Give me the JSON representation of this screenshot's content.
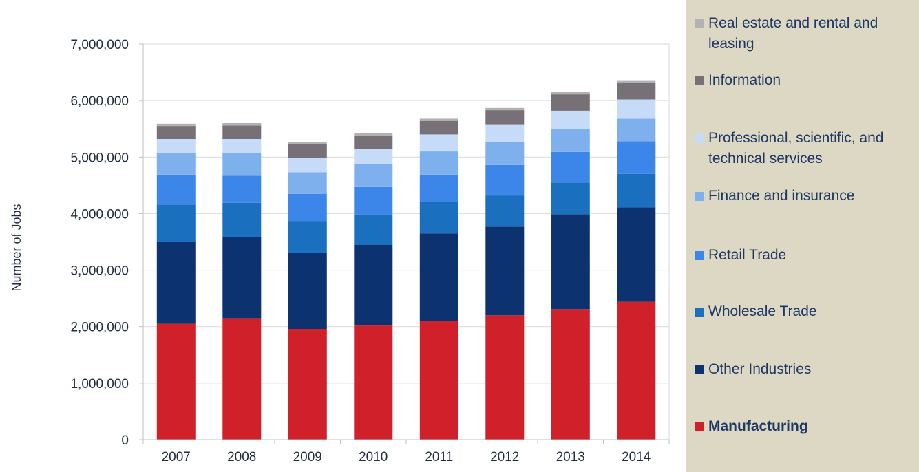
{
  "chart_data": {
    "type": "bar",
    "stacked": true,
    "title": "",
    "xlabel": "",
    "ylabel": "Number of Jobs",
    "ylim": [
      0,
      7000000
    ],
    "y_ticks": [
      0,
      1000000,
      2000000,
      3000000,
      4000000,
      5000000,
      6000000,
      7000000
    ],
    "y_tick_labels": [
      "0",
      "1,000,000",
      "2,000,000",
      "3,000,000",
      "4,000,000",
      "5,000,000",
      "6,000,000",
      "7,000,000"
    ],
    "grid": true,
    "legend_position": "right",
    "categories": [
      "2007",
      "2008",
      "2009",
      "2010",
      "2011",
      "2012",
      "2013",
      "2014"
    ],
    "series": [
      {
        "name": "Manufacturing",
        "color": "#d0202a",
        "bold": true,
        "values": [
          2050000,
          2150000,
          1960000,
          2020000,
          2100000,
          2200000,
          2310000,
          2440000
        ]
      },
      {
        "name": "Other Industries",
        "color": "#0d3270",
        "values": [
          1450000,
          1440000,
          1340000,
          1430000,
          1550000,
          1570000,
          1680000,
          1670000
        ]
      },
      {
        "name": "Wholesale Trade",
        "color": "#1a6fbf",
        "values": [
          660000,
          600000,
          570000,
          540000,
          560000,
          550000,
          560000,
          590000
        ]
      },
      {
        "name": "Retail Trade",
        "color": "#3b86e8",
        "values": [
          530000,
          480000,
          480000,
          480000,
          480000,
          540000,
          540000,
          580000
        ]
      },
      {
        "name": "Finance and insurance",
        "color": "#7fb0ee",
        "values": [
          380000,
          400000,
          380000,
          410000,
          410000,
          410000,
          410000,
          400000
        ]
      },
      {
        "name": "Professional, scientific, and technical services",
        "color": "#c6dbf8",
        "values": [
          250000,
          250000,
          260000,
          260000,
          300000,
          310000,
          320000,
          340000
        ]
      },
      {
        "name": "Information",
        "color": "#777076",
        "values": [
          230000,
          240000,
          240000,
          240000,
          240000,
          250000,
          290000,
          290000
        ]
      },
      {
        "name": "Real estate and rental and leasing",
        "color": "#b3b1b3",
        "values": [
          40000,
          40000,
          40000,
          40000,
          40000,
          40000,
          50000,
          50000
        ]
      }
    ]
  }
}
